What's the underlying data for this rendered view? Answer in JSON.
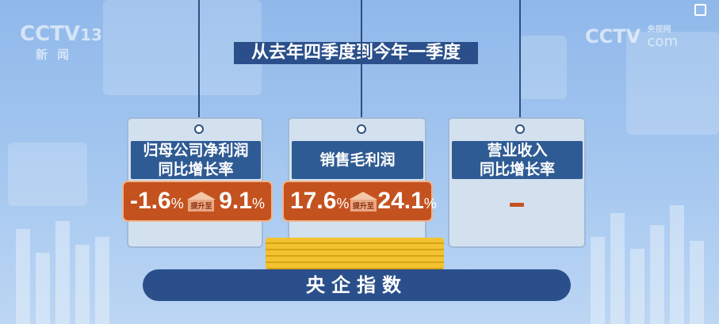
{
  "watermarks": {
    "channel": "CCTV",
    "channel_number": "13",
    "channel_name": "新闻",
    "site": "CCTV",
    "site_cn": "央视网",
    "site_suffix": "com"
  },
  "header": {
    "title": "从去年四季度到今年一季度"
  },
  "cards": [
    {
      "title_line1": "归母公司净利润",
      "title_line2": "同比增长率",
      "from": "-1.6",
      "to": "9.1",
      "unit": "%",
      "change_label": "提升至"
    },
    {
      "title_line1": "销售毛利润",
      "title_line2": "",
      "from": "17.6",
      "to": "24.1",
      "unit": "%",
      "change_label": "提升至"
    },
    {
      "title_line1": "营业收入",
      "title_line2": "同比增长率"
    }
  ],
  "footer": {
    "label": "央企指数"
  },
  "colors": {
    "accent": "#c4521f",
    "title_bg": "#2f5b94",
    "banner": "#2a4f8a"
  }
}
